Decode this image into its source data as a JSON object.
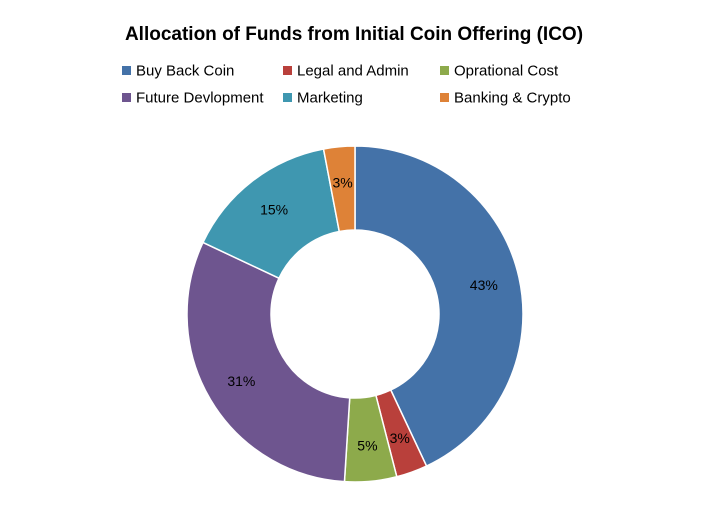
{
  "chart_data": {
    "type": "pie",
    "donut": true,
    "title": "Allocation of Funds from Initial Coin Offering (ICO)",
    "categories": [
      "Buy Back Coin",
      "Legal and Admin",
      "Oprational Cost",
      "Future Devlopment",
      "Marketing",
      "Banking & Crypto"
    ],
    "values": [
      43,
      3,
      5,
      31,
      15,
      3
    ],
    "labels": [
      "43%",
      "3%",
      "5%",
      "31%",
      "15%",
      "3%"
    ],
    "colors": [
      "#4472A8",
      "#B9403B",
      "#8DAA4B",
      "#6E558F",
      "#3F97B0",
      "#DE8237"
    ],
    "legend_position": "top"
  }
}
